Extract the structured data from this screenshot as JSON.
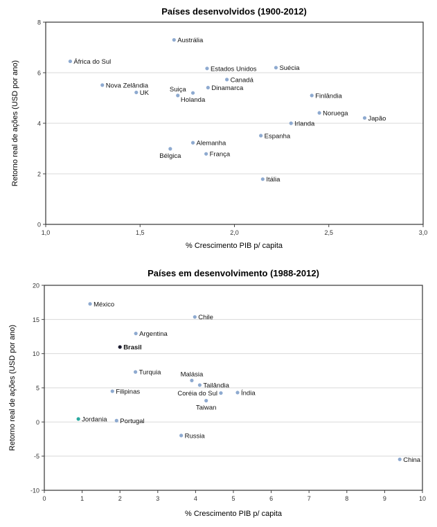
{
  "chart_data": [
    {
      "type": "scatter",
      "title": "Países desenvolvidos (1900-2012)",
      "xlabel": "% Crescimento PIB p/ capita",
      "ylabel": "Retorno real de ações (USD por ano)",
      "xlim": [
        1.0,
        3.0
      ],
      "ylim": [
        0,
        8
      ],
      "xticks": [
        1.0,
        1.5,
        2.0,
        2.5,
        3.0
      ],
      "xtick_labels": [
        "1,0",
        "1,5",
        "2,0",
        "2,5",
        "3,0"
      ],
      "yticks": [
        0,
        2,
        4,
        6,
        8
      ],
      "ytick_labels": [
        "0",
        "2",
        "4",
        "6",
        "8"
      ],
      "grid": "horizontal",
      "points": [
        {
          "label": "Austrália",
          "x": 1.68,
          "y": 7.3,
          "color": "#8eaad0",
          "pos": "right"
        },
        {
          "label": "África do Sul",
          "x": 1.13,
          "y": 6.45,
          "color": "#8eaad0",
          "pos": "right"
        },
        {
          "label": "Estados Unidos",
          "x": 1.855,
          "y": 6.17,
          "color": "#8eaad0",
          "pos": "right"
        },
        {
          "label": "Suécia",
          "x": 2.22,
          "y": 6.2,
          "color": "#8eaad0",
          "pos": "right"
        },
        {
          "label": "Canadá",
          "x": 1.96,
          "y": 5.73,
          "color": "#8eaad0",
          "pos": "right"
        },
        {
          "label": "Nova Zelândia",
          "x": 1.3,
          "y": 5.51,
          "color": "#8eaad0",
          "pos": "right"
        },
        {
          "label": "UK",
          "x": 1.48,
          "y": 5.22,
          "color": "#8eaad0",
          "pos": "right"
        },
        {
          "label": "Suiça",
          "x": 1.7,
          "y": 5.1,
          "color": "#8eaad0",
          "pos": "above"
        },
        {
          "label": "Holanda",
          "x": 1.78,
          "y": 5.2,
          "color": "#8eaad0",
          "pos": "below"
        },
        {
          "label": "Dinamarca",
          "x": 1.86,
          "y": 5.41,
          "color": "#8eaad0",
          "pos": "right"
        },
        {
          "label": "Finlândia",
          "x": 2.41,
          "y": 5.1,
          "color": "#8eaad0",
          "pos": "right"
        },
        {
          "label": "Noruega",
          "x": 2.45,
          "y": 4.41,
          "color": "#8eaad0",
          "pos": "right"
        },
        {
          "label": "Japão",
          "x": 2.69,
          "y": 4.21,
          "color": "#8eaad0",
          "pos": "right"
        },
        {
          "label": "Irlanda",
          "x": 2.3,
          "y": 4.0,
          "color": "#8eaad0",
          "pos": "right"
        },
        {
          "label": "Espanha",
          "x": 2.14,
          "y": 3.51,
          "color": "#8eaad0",
          "pos": "right"
        },
        {
          "label": "Alemanha",
          "x": 1.78,
          "y": 3.23,
          "color": "#8eaad0",
          "pos": "right"
        },
        {
          "label": "Bélgica",
          "x": 1.66,
          "y": 2.99,
          "color": "#8eaad0",
          "pos": "below"
        },
        {
          "label": "França",
          "x": 1.85,
          "y": 2.79,
          "color": "#8eaad0",
          "pos": "right"
        },
        {
          "label": "Itália",
          "x": 2.15,
          "y": 1.79,
          "color": "#8eaad0",
          "pos": "right"
        }
      ]
    },
    {
      "type": "scatter",
      "title": "Países em desenvolvimento (1988-2012)",
      "xlabel": "% Crescimento PIB p/ capita",
      "ylabel": "Retorno real de ações (USD por ano)",
      "xlim": [
        0,
        10
      ],
      "ylim": [
        -10,
        20
      ],
      "xticks": [
        0,
        1,
        2,
        3,
        4,
        5,
        6,
        7,
        8,
        9,
        10
      ],
      "xtick_labels": [
        "0",
        "1",
        "2",
        "3",
        "4",
        "5",
        "6",
        "7",
        "8",
        "9",
        "10"
      ],
      "yticks": [
        -10,
        -5,
        0,
        5,
        10,
        15,
        20
      ],
      "ytick_labels": [
        "-10",
        "-5",
        "0",
        "5",
        "10",
        "15",
        "20"
      ],
      "grid": "horizontal",
      "points": [
        {
          "label": "México",
          "x": 1.21,
          "y": 17.28,
          "color": "#8eaad0",
          "pos": "right"
        },
        {
          "label": "Chile",
          "x": 3.98,
          "y": 15.37,
          "color": "#8eaad0",
          "pos": "right"
        },
        {
          "label": "Argentina",
          "x": 2.42,
          "y": 12.95,
          "color": "#8eaad0",
          "pos": "right"
        },
        {
          "label": "Brasil",
          "x": 2.0,
          "y": 10.97,
          "color": "#1a1a2e",
          "pos": "right",
          "bold": true
        },
        {
          "label": "Turquia",
          "x": 2.41,
          "y": 7.32,
          "color": "#8eaad0",
          "pos": "right"
        },
        {
          "label": "Malásia",
          "x": 3.9,
          "y": 6.07,
          "color": "#8eaad0",
          "pos": "above"
        },
        {
          "label": "Tailândia",
          "x": 4.11,
          "y": 5.4,
          "color": "#8eaad0",
          "pos": "right"
        },
        {
          "label": "Filipinas",
          "x": 1.8,
          "y": 4.5,
          "color": "#8eaad0",
          "pos": "right"
        },
        {
          "label": "Coréia do Sul",
          "x": 4.67,
          "y": 4.23,
          "color": "#8eaad0",
          "pos": "left"
        },
        {
          "label": "Índia",
          "x": 5.11,
          "y": 4.3,
          "color": "#8eaad0",
          "pos": "right"
        },
        {
          "label": "Taiwan",
          "x": 4.28,
          "y": 3.12,
          "color": "#8eaad0",
          "pos": "below"
        },
        {
          "label": "Jordania",
          "x": 0.9,
          "y": 0.44,
          "color": "#2aa9a0",
          "pos": "right"
        },
        {
          "label": "Portugal",
          "x": 1.91,
          "y": 0.2,
          "color": "#8eaad0",
          "pos": "right"
        },
        {
          "label": "Russia",
          "x": 3.62,
          "y": -1.98,
          "color": "#8eaad0",
          "pos": "right"
        },
        {
          "label": "China",
          "x": 9.4,
          "y": -5.47,
          "color": "#8eaad0",
          "pos": "right"
        }
      ]
    }
  ]
}
